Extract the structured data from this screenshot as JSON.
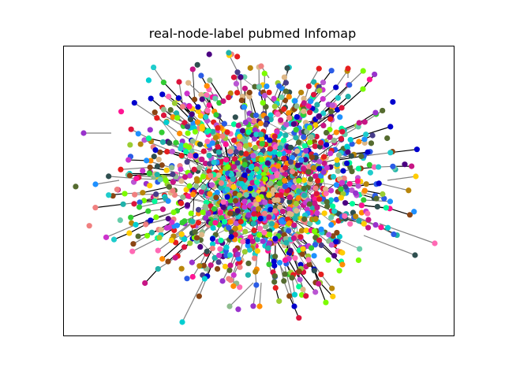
{
  "figure": {
    "title": "real-node-label pubmed Infomap",
    "background": "#ffffff",
    "frame_color": "#000000"
  },
  "graph": {
    "edge_colors": [
      "#808080",
      "#000000"
    ],
    "community_palette": [
      "#2b5ce6",
      "#e61e1e",
      "#33cc33",
      "#cc33cc",
      "#1ecccc",
      "#ffcc00",
      "#8b4513",
      "#ff69b4",
      "#7cfc00",
      "#4b0082",
      "#00ced1",
      "#dc143c",
      "#9acd32",
      "#ba55d3",
      "#20b2aa",
      "#ff8c00",
      "#556b2f",
      "#483d8b",
      "#deb887",
      "#00fa9a",
      "#c71585",
      "#1e90ff",
      "#b8860b",
      "#2f4f4f",
      "#ff1493",
      "#66cdaa",
      "#8fbc8f",
      "#9932cc",
      "#f08080",
      "#0000cd"
    ]
  }
}
